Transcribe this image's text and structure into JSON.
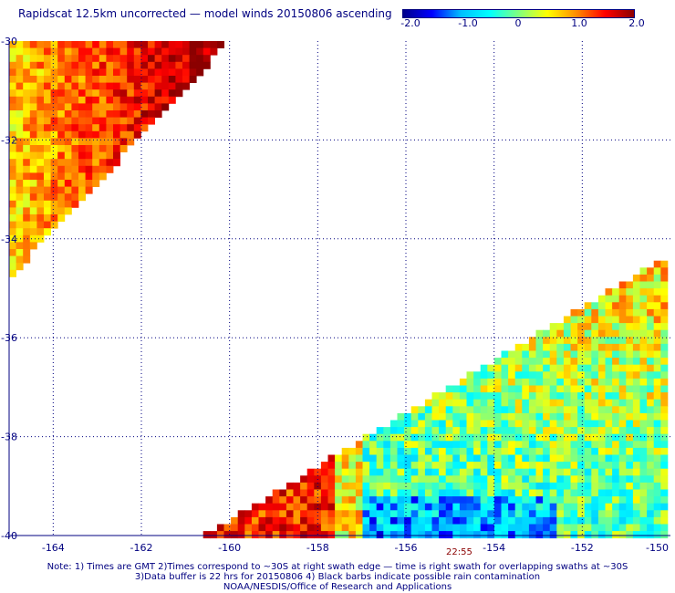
{
  "title": "Rapidscat 12.5km uncorrected — model winds 20150806 ascending",
  "colorbar": {
    "tick_labels": [
      "-2.0",
      "-1.0",
      "0",
      "1.0",
      "2.0"
    ],
    "range": [
      -2.0,
      2.0
    ],
    "colors": [
      "#00008b",
      "#0000ff",
      "#00bfff",
      "#00ffff",
      "#7fff7f",
      "#ffff00",
      "#ff8c00",
      "#ff0000",
      "#8b0000"
    ]
  },
  "axes": {
    "lon_labels": [
      "-164",
      "-162",
      "-160",
      "-158",
      "-156",
      "-154",
      "-152",
      "-150"
    ],
    "lat_labels": [
      "-30",
      "-32",
      "-34",
      "-36",
      "-38",
      "-40"
    ],
    "lon_range": [
      -165,
      -150
    ],
    "lat_range": [
      -40,
      -30
    ],
    "grid": true
  },
  "swaths": [
    {
      "name": "upper-left swath",
      "corners_lonlat": [
        [
          -165,
          -30
        ],
        [
          -160,
          -30
        ],
        [
          -165,
          -34.8
        ]
      ],
      "mean_value": 1.4,
      "dominant": "orange to dark red"
    },
    {
      "name": "lower-right swath",
      "corners_lonlat": [
        [
          -150,
          -34.3
        ],
        [
          -150,
          -40
        ],
        [
          -160.6,
          -40
        ]
      ],
      "mean_value": -0.3,
      "dominant": "cyan to blue with yellow and red patches"
    }
  ],
  "timestamp": "22:55",
  "notes": [
    "Note: 1) Times are GMT 2)Times correspond to ~30S at right swath edge — time is right swath for overlapping swaths at ~30S",
    "3)Data buffer is 22 hrs for 20150806 4) Black barbs indicate possible rain contamination",
    "NOAA/NESDIS/Office of Research and Applications"
  ]
}
